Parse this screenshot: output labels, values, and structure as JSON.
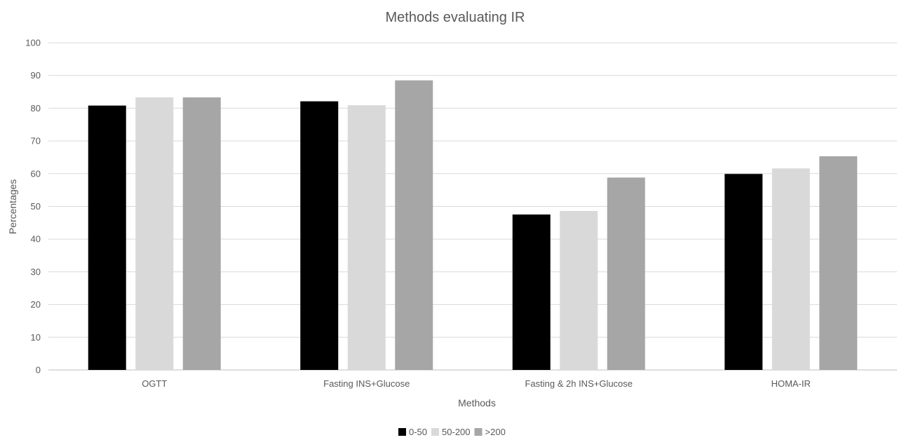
{
  "chart_data": {
    "type": "bar",
    "title": "Methods evaluating IR",
    "xlabel": "Methods",
    "ylabel": "Percentages",
    "ylim": [
      0,
      100
    ],
    "yticks": [
      0,
      10,
      20,
      30,
      40,
      50,
      60,
      70,
      80,
      90,
      100
    ],
    "grid": true,
    "legend_position": "bottom",
    "categories": [
      "OGTT",
      "Fasting INS+Glucose",
      "Fasting & 2h INS+Glucose",
      "HOMA-IR"
    ],
    "series": [
      {
        "name": "0-50",
        "color": "#000000",
        "values": [
          80.8,
          82.1,
          47.5,
          59.9
        ]
      },
      {
        "name": "50-200",
        "color": "#d9d9d9",
        "values": [
          83.3,
          80.9,
          48.6,
          61.6
        ]
      },
      {
        "name": ">200",
        "color": "#a6a6a6",
        "values": [
          83.3,
          88.5,
          58.8,
          65.3
        ]
      }
    ]
  }
}
